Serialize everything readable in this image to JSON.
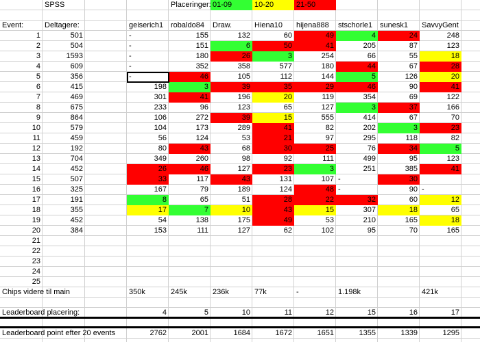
{
  "header": {
    "title": "SPSS",
    "legend_label": "Placeringer:",
    "legend": [
      {
        "label": "01-09",
        "fill": "#33ff33"
      },
      {
        "label": "10-20",
        "fill": "#ffff00"
      },
      {
        "label": "21-50",
        "fill": "#ff0000"
      }
    ]
  },
  "columns": {
    "event": "Event:",
    "participants": "Deltagere:",
    "players": [
      "geiserich1",
      "robaldo84",
      "Draw.",
      "Hiena10",
      "hijena888",
      "stschorle1",
      "sunesk1",
      "SavvyGent"
    ]
  },
  "rows": [
    {
      "event": 1,
      "participants": 501,
      "cells": [
        "-",
        155,
        132,
        60,
        {
          "value": 49,
          "fill": "#ff0000"
        },
        {
          "value": 4,
          "fill": "#33ff33"
        },
        {
          "value": 24,
          "fill": "#ff0000"
        },
        248
      ]
    },
    {
      "event": 2,
      "participants": 504,
      "cells": [
        "-",
        151,
        {
          "value": 6,
          "fill": "#33ff33"
        },
        {
          "value": 50,
          "fill": "#ff0000"
        },
        {
          "value": 41,
          "fill": "#ff0000"
        },
        205,
        87,
        123
      ]
    },
    {
      "event": 3,
      "participants": 1593,
      "cells": [
        "-",
        180,
        {
          "value": 26,
          "fill": "#ff0000"
        },
        {
          "value": 3,
          "fill": "#33ff33"
        },
        254,
        66,
        55,
        {
          "value": 18,
          "fill": "#ffff00"
        }
      ]
    },
    {
      "event": 4,
      "participants": 609,
      "cells": [
        "-",
        352,
        358,
        577,
        180,
        {
          "value": 44,
          "fill": "#ff0000"
        },
        67,
        {
          "value": 28,
          "fill": "#ff0000"
        }
      ]
    },
    {
      "event": 5,
      "participants": 356,
      "cells": [
        "-",
        {
          "value": 46,
          "fill": "#ff0000"
        },
        105,
        112,
        144,
        {
          "value": 5,
          "fill": "#33ff33"
        },
        126,
        {
          "value": 20,
          "fill": "#ffff00"
        }
      ]
    },
    {
      "event": 6,
      "participants": 415,
      "cells": [
        198,
        {
          "value": 3,
          "fill": "#33ff33"
        },
        {
          "value": 39,
          "fill": "#ff0000"
        },
        {
          "value": 35,
          "fill": "#ff0000"
        },
        {
          "value": 29,
          "fill": "#ff0000"
        },
        {
          "value": 46,
          "fill": "#ff0000"
        },
        90,
        {
          "value": 41,
          "fill": "#ff0000"
        }
      ]
    },
    {
      "event": 7,
      "participants": 469,
      "cells": [
        301,
        {
          "value": 41,
          "fill": "#ff0000"
        },
        196,
        {
          "value": 20,
          "fill": "#ffff00"
        },
        119,
        354,
        69,
        122
      ]
    },
    {
      "event": 8,
      "participants": 675,
      "cells": [
        233,
        96,
        123,
        65,
        127,
        {
          "value": 3,
          "fill": "#33ff33"
        },
        {
          "value": 37,
          "fill": "#ff0000"
        },
        166
      ]
    },
    {
      "event": 9,
      "participants": 864,
      "cells": [
        106,
        272,
        {
          "value": 39,
          "fill": "#ff0000"
        },
        {
          "value": 15,
          "fill": "#ffff00"
        },
        555,
        414,
        67,
        70
      ]
    },
    {
      "event": 10,
      "participants": 579,
      "cells": [
        104,
        173,
        289,
        {
          "value": 41,
          "fill": "#ff0000"
        },
        82,
        202,
        {
          "value": 3,
          "fill": "#33ff33"
        },
        {
          "value": 23,
          "fill": "#ff0000"
        }
      ]
    },
    {
      "event": 11,
      "participants": 459,
      "cells": [
        56,
        124,
        53,
        {
          "value": 21,
          "fill": "#ff0000"
        },
        97,
        295,
        118,
        82
      ]
    },
    {
      "event": 12,
      "participants": 192,
      "cells": [
        80,
        {
          "value": 43,
          "fill": "#ff0000"
        },
        68,
        {
          "value": 30,
          "fill": "#ff0000"
        },
        {
          "value": 25,
          "fill": "#ff0000"
        },
        76,
        {
          "value": 34,
          "fill": "#ff0000"
        },
        {
          "value": 5,
          "fill": "#33ff33"
        }
      ]
    },
    {
      "event": 13,
      "participants": 704,
      "cells": [
        349,
        260,
        98,
        92,
        111,
        499,
        95,
        123
      ]
    },
    {
      "event": 14,
      "participants": 452,
      "cells": [
        {
          "value": 26,
          "fill": "#ff0000"
        },
        {
          "value": 46,
          "fill": "#ff0000"
        },
        127,
        {
          "value": 23,
          "fill": "#ff0000"
        },
        {
          "value": 3,
          "fill": "#33ff33"
        },
        251,
        385,
        {
          "value": 41,
          "fill": "#ff0000"
        }
      ]
    },
    {
      "event": 15,
      "participants": 507,
      "cells": [
        {
          "value": 33,
          "fill": "#ff0000"
        },
        117,
        {
          "value": 43,
          "fill": "#ff0000"
        },
        131,
        107,
        "-",
        {
          "value": 30,
          "fill": "#ff0000"
        },
        null
      ]
    },
    {
      "event": 16,
      "participants": 325,
      "cells": [
        167,
        79,
        189,
        124,
        {
          "value": 48,
          "fill": "#ff0000"
        },
        "-",
        90,
        "-"
      ]
    },
    {
      "event": 17,
      "participants": 191,
      "cells": [
        {
          "value": 8,
          "fill": "#33ff33"
        },
        65,
        51,
        {
          "value": 28,
          "fill": "#ff0000"
        },
        {
          "value": 22,
          "fill": "#ff0000"
        },
        {
          "value": 32,
          "fill": "#ff0000"
        },
        60,
        {
          "value": 12,
          "fill": "#ffff00"
        }
      ]
    },
    {
      "event": 18,
      "participants": 355,
      "cells": [
        {
          "value": 17,
          "fill": "#ffff00"
        },
        {
          "value": 7,
          "fill": "#33ff33"
        },
        {
          "value": 10,
          "fill": "#ffff00"
        },
        {
          "value": 43,
          "fill": "#ff0000"
        },
        {
          "value": 15,
          "fill": "#ffff00"
        },
        307,
        {
          "value": 18,
          "fill": "#ffff00"
        },
        65
      ]
    },
    {
      "event": 19,
      "participants": 452,
      "cells": [
        54,
        138,
        175,
        {
          "value": 49,
          "fill": "#ff0000"
        },
        53,
        210,
        165,
        {
          "value": 18,
          "fill": "#ffff00"
        }
      ]
    },
    {
      "event": 20,
      "participants": 384,
      "cells": [
        153,
        111,
        127,
        62,
        102,
        95,
        70,
        165
      ]
    },
    {
      "event": 21
    },
    {
      "event": 22
    },
    {
      "event": 23
    },
    {
      "event": 24
    },
    {
      "event": 25
    }
  ],
  "summary": [
    {
      "label": "Chips videre til main",
      "cells": [
        "350k",
        "245k",
        "236k",
        "77k",
        "-",
        "1.198k",
        null,
        "421k"
      ]
    },
    {
      "label": "Leaderboard placering:",
      "cells": [
        4,
        5,
        10,
        11,
        12,
        15,
        16,
        17
      ]
    },
    {
      "label": "Leaderboard point efter 20 events",
      "cells": [
        2762,
        2001,
        1684,
        1672,
        1651,
        1355,
        1339,
        1295
      ]
    }
  ]
}
